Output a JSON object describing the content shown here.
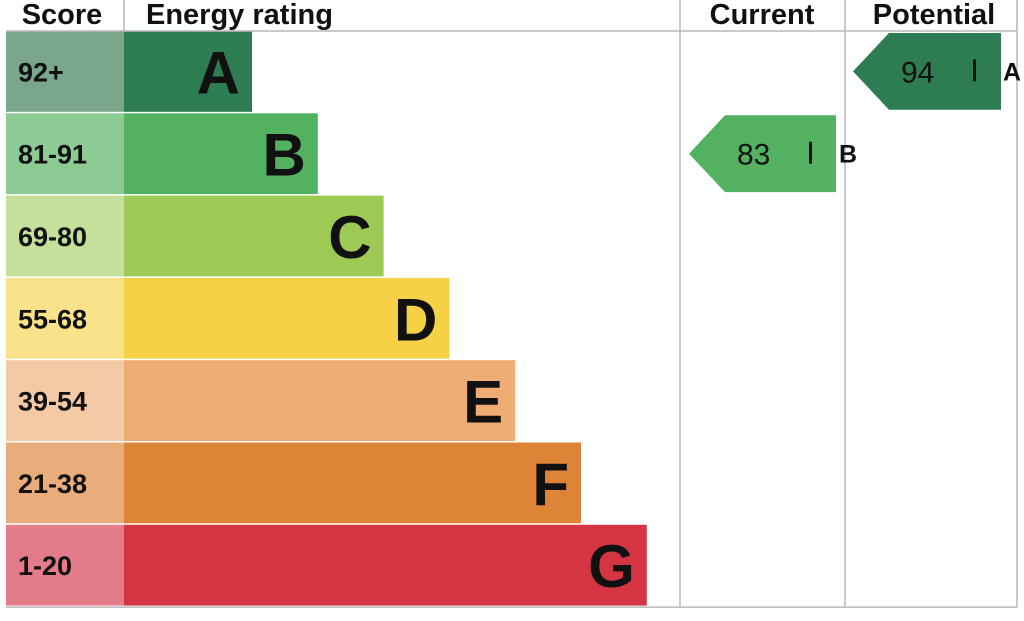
{
  "chart_data": {
    "type": "bar",
    "headers": {
      "score": "Score",
      "rating": "Energy rating",
      "current": "Current",
      "potential": "Potential"
    },
    "bands": [
      {
        "label": "A",
        "range": "92+",
        "color": "#2e7d52",
        "score_bg": "#7aa68c"
      },
      {
        "label": "B",
        "range": "81-91",
        "color": "#52b262",
        "score_bg": "#8dcb95"
      },
      {
        "label": "C",
        "range": "69-80",
        "color": "#9cca54",
        "score_bg": "#c5e09a"
      },
      {
        "label": "D",
        "range": "55-68",
        "color": "#f6d146",
        "score_bg": "#f9e28a"
      },
      {
        "label": "E",
        "range": "39-54",
        "color": "#eead74",
        "score_bg": "#f4caa6"
      },
      {
        "label": "F",
        "range": "21-38",
        "color": "#de8437",
        "score_bg": "#e9ad7b"
      },
      {
        "label": "G",
        "range": "1-20",
        "color": "#d53443",
        "score_bg": "#e37b88"
      }
    ],
    "current": {
      "value": 83,
      "band": "B",
      "color": "#52b262"
    },
    "potential": {
      "value": 94,
      "band": "A",
      "color": "#2e7d52"
    }
  }
}
